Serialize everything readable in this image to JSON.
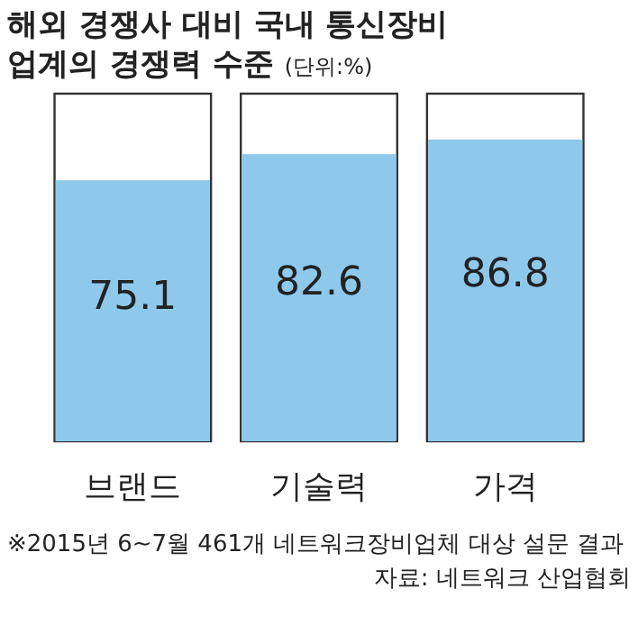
{
  "chart_data": {
    "type": "bar",
    "title": "해외 경쟁사 대비 국내 통신장비 업계의 경쟁력 수준",
    "subtitle": "(단위:%)",
    "categories": [
      "브랜드",
      "기술력",
      "가격"
    ],
    "values": [
      75.1,
      82.6,
      86.8
    ],
    "color": "#8ec9ec",
    "ylim": [
      0,
      100
    ],
    "data_labels": true,
    "annotations": [
      "※2015년 6~7월 461개 네트워크장비업체 대상 설문 결과",
      "자료: 네트워크 산업협회"
    ]
  }
}
